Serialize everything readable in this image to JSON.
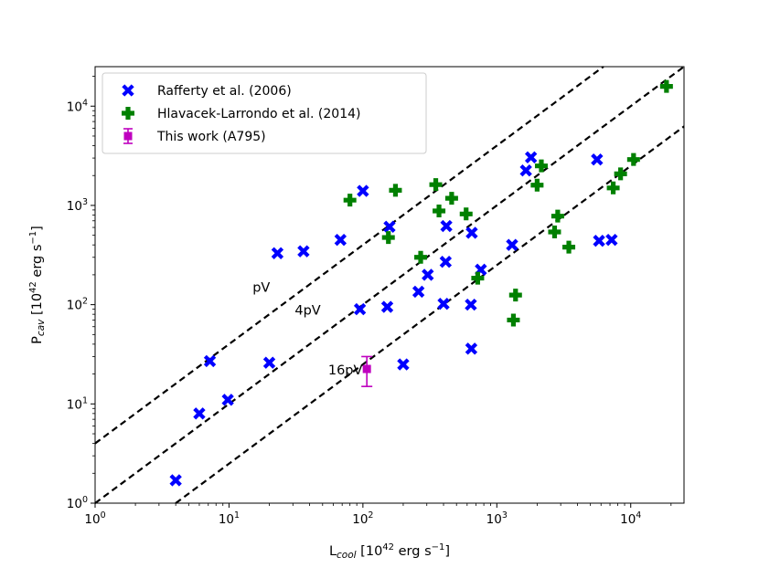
{
  "chart_data": {
    "type": "scatter",
    "x_scale": "log",
    "y_scale": "log",
    "xlim": [
      1,
      25000
    ],
    "ylim": [
      1,
      25000
    ],
    "xlabel": {
      "base": "L",
      "sub": "cool",
      "unit_pre": " [10",
      "unit_exp": "42",
      "unit_mid": " erg s",
      "unit_exp2": "−1",
      "unit_post": "]"
    },
    "ylabel": {
      "base": "P",
      "sub": "cav",
      "unit_pre": " [10",
      "unit_exp": "42",
      "unit_mid": " erg s",
      "unit_exp2": "−1",
      "unit_post": "]"
    },
    "x_ticks": [
      {
        "value": 1,
        "base": "10",
        "exp": "0"
      },
      {
        "value": 10,
        "base": "10",
        "exp": "1"
      },
      {
        "value": 100,
        "base": "10",
        "exp": "2"
      },
      {
        "value": 1000,
        "base": "10",
        "exp": "3"
      },
      {
        "value": 10000,
        "base": "10",
        "exp": "4"
      }
    ],
    "y_ticks": [
      {
        "value": 1,
        "base": "10",
        "exp": "0"
      },
      {
        "value": 10,
        "base": "10",
        "exp": "1"
      },
      {
        "value": 100,
        "base": "10",
        "exp": "2"
      },
      {
        "value": 1000,
        "base": "10",
        "exp": "3"
      },
      {
        "value": 10000,
        "base": "10",
        "exp": "4"
      }
    ],
    "lines": [
      {
        "name": "pV",
        "label": "pV",
        "factor": 4,
        "label_at": [
          15,
          150
        ]
      },
      {
        "name": "4pV",
        "label": "4pV",
        "factor": 1,
        "label_at": [
          31,
          88
        ]
      },
      {
        "name": "16pV",
        "label": "16pV",
        "factor": 0.25,
        "label_at": [
          55,
          22
        ]
      }
    ],
    "series": [
      {
        "name": "Rafferty et al. (2006)",
        "marker": "x",
        "color": "#0000ff",
        "points": [
          [
            4,
            1.7
          ],
          [
            6,
            8
          ],
          [
            7.2,
            27
          ],
          [
            9.8,
            11
          ],
          [
            20,
            26
          ],
          [
            23,
            330
          ],
          [
            36,
            345
          ],
          [
            68,
            450
          ],
          [
            95,
            90
          ],
          [
            100,
            1400
          ],
          [
            152,
            95
          ],
          [
            158,
            610
          ],
          [
            200,
            25
          ],
          [
            260,
            135
          ],
          [
            305,
            200
          ],
          [
            400,
            102
          ],
          [
            415,
            270
          ],
          [
            420,
            620
          ],
          [
            640,
            100
          ],
          [
            645,
            36
          ],
          [
            650,
            530
          ],
          [
            760,
            225
          ],
          [
            1300,
            400
          ],
          [
            1650,
            2250
          ],
          [
            1800,
            3050
          ],
          [
            5600,
            2900
          ],
          [
            5800,
            440
          ],
          [
            7200,
            450
          ]
        ]
      },
      {
        "name": "Hlavacek-Larrondo et al. (2014)",
        "marker": "plus",
        "color": "#008000",
        "points": [
          [
            80,
            1130
          ],
          [
            155,
            475
          ],
          [
            175,
            1420
          ],
          [
            270,
            300
          ],
          [
            350,
            1620
          ],
          [
            370,
            880
          ],
          [
            460,
            1180
          ],
          [
            590,
            820
          ],
          [
            720,
            185
          ],
          [
            1330,
            70
          ],
          [
            1380,
            125
          ],
          [
            2000,
            1600
          ],
          [
            2150,
            2500
          ],
          [
            2700,
            540
          ],
          [
            2850,
            780
          ],
          [
            3450,
            380
          ],
          [
            7400,
            1500
          ],
          [
            8400,
            2080
          ],
          [
            10500,
            2900
          ],
          [
            18500,
            15800
          ]
        ]
      },
      {
        "name": "This work (A795)",
        "marker": "square",
        "color": "#bf00bf",
        "points": [
          [
            107,
            22.5
          ]
        ],
        "err_low": [
          15
        ],
        "err_high": [
          30
        ]
      }
    ],
    "legend": {
      "location": "upper-left",
      "entries": [
        "Rafferty et al. (2006)",
        "Hlavacek-Larrondo et al. (2014)",
        "This work (A795)"
      ]
    }
  }
}
